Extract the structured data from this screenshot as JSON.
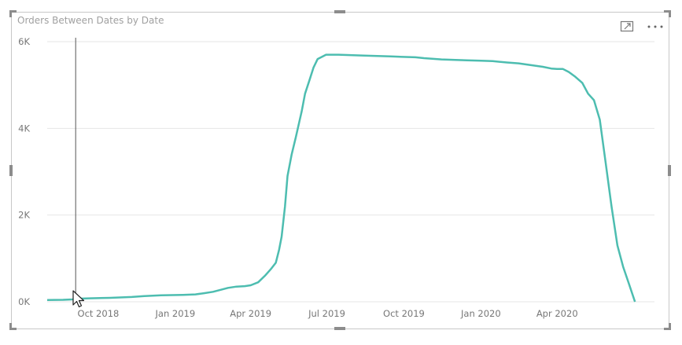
{
  "visual": {
    "title": "Orders Between Dates by Date",
    "focus_icon": "focus-mode-icon",
    "more_icon": "more-options-icon",
    "cursor_icon": "mouse-pointer-icon"
  },
  "colors": {
    "line": "#4dbdb0",
    "grid": "#e6e6e6",
    "tick_text": "#777777",
    "cursor_line": "#555555"
  },
  "chart_data": {
    "type": "line",
    "title": "Orders Between Dates by Date",
    "xlabel": "",
    "ylabel": "",
    "x_ticks": [
      "Oct 2018",
      "Jan 2019",
      "Apr 2019",
      "Jul 2019",
      "Oct 2019",
      "Jan 2020",
      "Apr 2020"
    ],
    "y_ticks": [
      "0K",
      "2K",
      "4K",
      "6K"
    ],
    "ylim": [
      0,
      6000
    ],
    "xlim": [
      "2018-08-01",
      "2020-07-15"
    ],
    "grid": true,
    "hover_date": "2018-09-04",
    "series": [
      {
        "x": [
          "2018-08-01",
          "2018-08-20",
          "2018-08-31",
          "2018-09-05",
          "2018-09-20",
          "2018-10-15",
          "2018-11-10",
          "2018-11-25",
          "2018-12-15",
          "2019-01-10",
          "2019-01-25",
          "2019-02-05",
          "2019-02-15",
          "2019-02-25",
          "2019-03-05",
          "2019-03-15",
          "2019-03-25",
          "2019-04-01",
          "2019-04-10",
          "2019-04-18",
          "2019-04-25",
          "2019-05-01",
          "2019-05-05",
          "2019-05-08",
          "2019-05-12",
          "2019-05-15",
          "2019-05-20",
          "2019-05-25",
          "2019-06-01",
          "2019-06-05",
          "2019-06-10",
          "2019-06-15",
          "2019-06-20",
          "2019-06-30",
          "2019-07-15",
          "2019-08-15",
          "2019-09-15",
          "2019-10-15",
          "2019-10-25",
          "2019-11-15",
          "2019-12-15",
          "2020-01-01",
          "2020-01-15",
          "2020-02-01",
          "2020-02-15",
          "2020-03-15",
          "2020-03-25",
          "2020-04-01",
          "2020-04-08",
          "2020-04-15",
          "2020-04-22",
          "2020-05-01",
          "2020-05-08",
          "2020-05-15",
          "2020-05-22",
          "2020-05-29",
          "2020-06-05",
          "2020-06-12",
          "2020-06-19",
          "2020-06-26",
          "2020-07-03"
        ],
        "values": [
          40,
          45,
          55,
          70,
          80,
          90,
          110,
          130,
          150,
          160,
          170,
          200,
          230,
          280,
          320,
          350,
          360,
          380,
          450,
          600,
          750,
          900,
          1200,
          1500,
          2200,
          2900,
          3400,
          3800,
          4400,
          4800,
          5100,
          5400,
          5600,
          5700,
          5700,
          5680,
          5660,
          5640,
          5620,
          5590,
          5570,
          5560,
          5550,
          5520,
          5500,
          5420,
          5380,
          5370,
          5370,
          5300,
          5200,
          5050,
          4800,
          4650,
          4200,
          3200,
          2200,
          1300,
          800,
          400,
          0
        ]
      }
    ]
  }
}
